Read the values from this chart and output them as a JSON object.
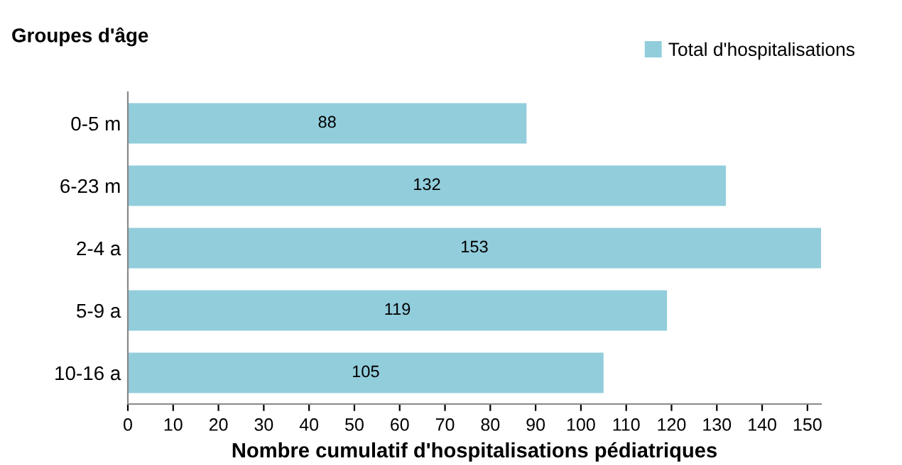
{
  "chart_data": {
    "type": "bar",
    "orientation": "horizontal",
    "ylabel": "Groupes d'âge",
    "xlabel": "Nombre cumulatif d'hospitalisations pédiatriques",
    "categories": [
      "0-5 m",
      "6-23 m",
      "2-4 a",
      "5-9 a",
      "10-16 a"
    ],
    "series": [
      {
        "name": "Total d'hospitalisations",
        "color": "#92cddc",
        "values": [
          88,
          132,
          153,
          119,
          105
        ]
      }
    ],
    "xlim": [
      0,
      153
    ],
    "xticks": [
      0,
      10,
      20,
      30,
      40,
      50,
      60,
      70,
      80,
      90,
      100,
      110,
      120,
      130,
      140,
      150
    ],
    "data_labels": true,
    "grid": false,
    "legend": "top right"
  }
}
